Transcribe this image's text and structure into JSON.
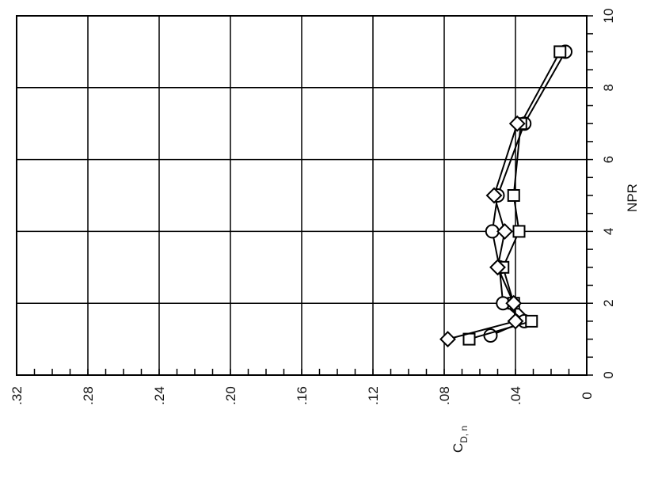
{
  "chart_data": {
    "type": "line",
    "orientation": "rotated-90-ccw",
    "xlabel": "NPR",
    "ylabel": "C",
    "ylabel_subscript": "D, n",
    "xlim": [
      0,
      10
    ],
    "ylim": [
      0,
      0.32
    ],
    "x_ticks": [
      0,
      2,
      4,
      6,
      8,
      10
    ],
    "x_tick_labels": [
      "0",
      "2",
      "4",
      "6",
      "8",
      "10"
    ],
    "y_ticks": [
      0,
      0.04,
      0.08,
      0.12,
      0.16,
      0.2,
      0.24,
      0.28,
      0.32
    ],
    "y_tick_labels": [
      "0",
      ".04",
      ".08",
      ".12",
      ".16",
      ".20",
      ".24",
      ".28",
      ".32"
    ],
    "grid": true,
    "series": [
      {
        "marker": "circle",
        "x": [
          1.1,
          1.5,
          2.0,
          3.0,
          4.0,
          5.0,
          7.0,
          9.0
        ],
        "y": [
          0.054,
          0.035,
          0.047,
          0.049,
          0.053,
          0.05,
          0.035,
          0.012
        ]
      },
      {
        "marker": "square",
        "x": [
          1.0,
          1.5,
          2.0,
          3.0,
          4.0,
          5.0,
          7.0,
          9.0
        ],
        "y": [
          0.066,
          0.031,
          0.041,
          0.047,
          0.038,
          0.041,
          0.037,
          0.015
        ]
      },
      {
        "marker": "diamond",
        "x": [
          1.0,
          1.5,
          2.0,
          3.0,
          4.0,
          5.0,
          7.0
        ],
        "y": [
          0.078,
          0.04,
          0.041,
          0.05,
          0.046,
          0.052,
          0.039
        ]
      }
    ]
  }
}
